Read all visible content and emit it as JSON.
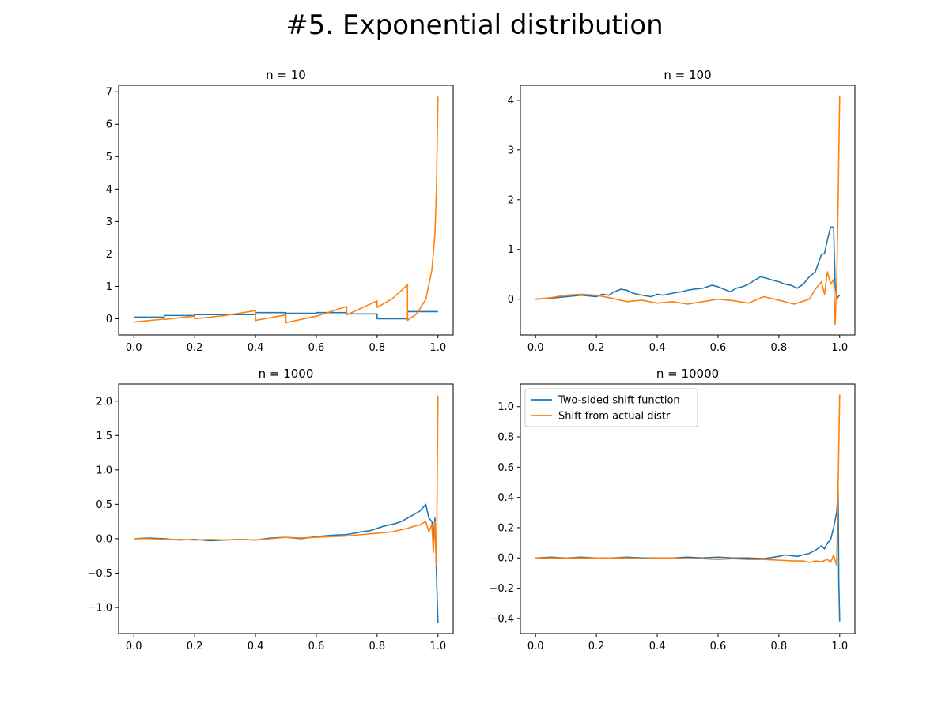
{
  "figure": {
    "title": "#5. Exponential distribution"
  },
  "colors": {
    "two_sided": "#1f77b4",
    "actual": "#ff7f0e"
  },
  "legend": {
    "items": [
      "Two-sided shift function",
      "Shift from actual distr"
    ]
  },
  "chart_data": [
    {
      "type": "line",
      "title": "n = 10",
      "xlim": [
        -0.05,
        1.05
      ],
      "ylim": [
        -0.5,
        7.2
      ],
      "xticks": [
        0.0,
        0.2,
        0.4,
        0.6,
        0.8,
        1.0
      ],
      "xtick_labels": [
        "0.0",
        "0.2",
        "0.4",
        "0.6",
        "0.8",
        "1.0"
      ],
      "yticks": [
        0,
        1,
        2,
        3,
        4,
        5,
        6,
        7
      ],
      "ytick_labels": [
        "0",
        "1",
        "2",
        "3",
        "4",
        "5",
        "6",
        "7"
      ],
      "series": [
        {
          "color": "#1f77b4",
          "points": [
            [
              0.0,
              0.05
            ],
            [
              0.1,
              0.05
            ],
            [
              0.1,
              0.1
            ],
            [
              0.2,
              0.1
            ],
            [
              0.2,
              0.13
            ],
            [
              0.4,
              0.13
            ],
            [
              0.4,
              0.19
            ],
            [
              0.5,
              0.19
            ],
            [
              0.5,
              0.17
            ],
            [
              0.6,
              0.17
            ],
            [
              0.6,
              0.19
            ],
            [
              0.7,
              0.19
            ],
            [
              0.7,
              0.15
            ],
            [
              0.8,
              0.15
            ],
            [
              0.8,
              0.0
            ],
            [
              0.9,
              0.0
            ],
            [
              0.9,
              0.22
            ],
            [
              1.0,
              0.22
            ]
          ]
        },
        {
          "color": "#ff7f0e",
          "points": [
            [
              0.0,
              -0.1
            ],
            [
              0.1,
              -0.01
            ],
            [
              0.1,
              -0.02
            ],
            [
              0.2,
              0.08
            ],
            [
              0.2,
              0.0
            ],
            [
              0.3,
              0.1
            ],
            [
              0.4,
              0.25
            ],
            [
              0.4,
              -0.05
            ],
            [
              0.5,
              0.12
            ],
            [
              0.5,
              -0.12
            ],
            [
              0.6,
              0.08
            ],
            [
              0.7,
              0.38
            ],
            [
              0.7,
              0.12
            ],
            [
              0.8,
              0.55
            ],
            [
              0.8,
              0.35
            ],
            [
              0.85,
              0.62
            ],
            [
              0.9,
              1.05
            ],
            [
              0.9,
              -0.05
            ],
            [
              0.93,
              0.15
            ],
            [
              0.96,
              0.6
            ],
            [
              0.98,
              1.5
            ],
            [
              0.99,
              2.6
            ],
            [
              0.995,
              4.0
            ],
            [
              1.0,
              6.85
            ]
          ]
        }
      ]
    },
    {
      "type": "line",
      "title": "n = 100",
      "xlim": [
        -0.05,
        1.05
      ],
      "ylim": [
        -0.72,
        4.3
      ],
      "xticks": [
        0.0,
        0.2,
        0.4,
        0.6,
        0.8,
        1.0
      ],
      "xtick_labels": [
        "0.0",
        "0.2",
        "0.4",
        "0.6",
        "0.8",
        "1.0"
      ],
      "yticks": [
        0,
        1,
        2,
        3,
        4
      ],
      "ytick_labels": [
        "0",
        "1",
        "2",
        "3",
        "4"
      ],
      "series": [
        {
          "color": "#1f77b4",
          "points": [
            [
              0.0,
              0.0
            ],
            [
              0.05,
              0.02
            ],
            [
              0.1,
              0.05
            ],
            [
              0.15,
              0.08
            ],
            [
              0.2,
              0.05
            ],
            [
              0.22,
              0.1
            ],
            [
              0.24,
              0.08
            ],
            [
              0.26,
              0.15
            ],
            [
              0.28,
              0.2
            ],
            [
              0.3,
              0.18
            ],
            [
              0.32,
              0.12
            ],
            [
              0.35,
              0.08
            ],
            [
              0.38,
              0.05
            ],
            [
              0.4,
              0.1
            ],
            [
              0.42,
              0.08
            ],
            [
              0.45,
              0.12
            ],
            [
              0.48,
              0.15
            ],
            [
              0.5,
              0.18
            ],
            [
              0.52,
              0.2
            ],
            [
              0.55,
              0.22
            ],
            [
              0.58,
              0.28
            ],
            [
              0.6,
              0.25
            ],
            [
              0.62,
              0.2
            ],
            [
              0.64,
              0.15
            ],
            [
              0.66,
              0.22
            ],
            [
              0.68,
              0.25
            ],
            [
              0.7,
              0.3
            ],
            [
              0.72,
              0.38
            ],
            [
              0.74,
              0.45
            ],
            [
              0.76,
              0.42
            ],
            [
              0.78,
              0.38
            ],
            [
              0.8,
              0.35
            ],
            [
              0.82,
              0.3
            ],
            [
              0.84,
              0.28
            ],
            [
              0.86,
              0.22
            ],
            [
              0.88,
              0.3
            ],
            [
              0.9,
              0.45
            ],
            [
              0.92,
              0.55
            ],
            [
              0.94,
              0.9
            ],
            [
              0.95,
              0.92
            ],
            [
              0.96,
              1.2
            ],
            [
              0.97,
              1.45
            ],
            [
              0.98,
              1.45
            ],
            [
              0.985,
              0.3
            ],
            [
              0.99,
              0.0
            ],
            [
              0.995,
              0.05
            ],
            [
              1.0,
              0.08
            ]
          ]
        },
        {
          "color": "#ff7f0e",
          "points": [
            [
              0.0,
              0.0
            ],
            [
              0.05,
              0.03
            ],
            [
              0.1,
              0.08
            ],
            [
              0.15,
              0.1
            ],
            [
              0.2,
              0.08
            ],
            [
              0.25,
              0.02
            ],
            [
              0.3,
              -0.05
            ],
            [
              0.35,
              -0.02
            ],
            [
              0.4,
              -0.08
            ],
            [
              0.45,
              -0.05
            ],
            [
              0.5,
              -0.1
            ],
            [
              0.55,
              -0.05
            ],
            [
              0.6,
              0.0
            ],
            [
              0.65,
              -0.03
            ],
            [
              0.7,
              -0.08
            ],
            [
              0.75,
              0.05
            ],
            [
              0.8,
              -0.02
            ],
            [
              0.85,
              -0.1
            ],
            [
              0.9,
              0.0
            ],
            [
              0.92,
              0.2
            ],
            [
              0.94,
              0.35
            ],
            [
              0.95,
              0.1
            ],
            [
              0.96,
              0.55
            ],
            [
              0.97,
              0.3
            ],
            [
              0.98,
              0.4
            ],
            [
              0.985,
              -0.5
            ],
            [
              0.99,
              0.3
            ],
            [
              0.995,
              2.0
            ],
            [
              1.0,
              4.1
            ]
          ]
        }
      ]
    },
    {
      "type": "line",
      "title": "n = 1000",
      "xlim": [
        -0.05,
        1.05
      ],
      "ylim": [
        -1.38,
        2.25
      ],
      "xticks": [
        0.0,
        0.2,
        0.4,
        0.6,
        0.8,
        1.0
      ],
      "xtick_labels": [
        "0.0",
        "0.2",
        "0.4",
        "0.6",
        "0.8",
        "1.0"
      ],
      "yticks": [
        -1.0,
        -0.5,
        0.0,
        0.5,
        1.0,
        1.5,
        2.0
      ],
      "ytick_labels": [
        "−1.0",
        "−0.5",
        "0.0",
        "0.5",
        "1.0",
        "1.5",
        "2.0"
      ],
      "series": [
        {
          "color": "#1f77b4",
          "points": [
            [
              0.0,
              0.0
            ],
            [
              0.05,
              0.01
            ],
            [
              0.1,
              0.0
            ],
            [
              0.15,
              -0.02
            ],
            [
              0.2,
              -0.01
            ],
            [
              0.25,
              -0.03
            ],
            [
              0.3,
              -0.02
            ],
            [
              0.35,
              -0.01
            ],
            [
              0.4,
              -0.02
            ],
            [
              0.45,
              0.01
            ],
            [
              0.5,
              0.02
            ],
            [
              0.55,
              0.0
            ],
            [
              0.6,
              0.03
            ],
            [
              0.65,
              0.05
            ],
            [
              0.7,
              0.06
            ],
            [
              0.75,
              0.1
            ],
            [
              0.78,
              0.12
            ],
            [
              0.8,
              0.15
            ],
            [
              0.82,
              0.18
            ],
            [
              0.84,
              0.2
            ],
            [
              0.86,
              0.22
            ],
            [
              0.88,
              0.25
            ],
            [
              0.9,
              0.3
            ],
            [
              0.92,
              0.35
            ],
            [
              0.94,
              0.4
            ],
            [
              0.95,
              0.45
            ],
            [
              0.96,
              0.5
            ],
            [
              0.97,
              0.3
            ],
            [
              0.98,
              0.25
            ],
            [
              0.985,
              0.0
            ],
            [
              0.99,
              0.3
            ],
            [
              0.995,
              -0.5
            ],
            [
              1.0,
              -1.22
            ]
          ]
        },
        {
          "color": "#ff7f0e",
          "points": [
            [
              0.0,
              0.0
            ],
            [
              0.05,
              0.0
            ],
            [
              0.1,
              -0.01
            ],
            [
              0.15,
              -0.01
            ],
            [
              0.2,
              -0.02
            ],
            [
              0.25,
              -0.01
            ],
            [
              0.3,
              -0.02
            ],
            [
              0.35,
              -0.01
            ],
            [
              0.4,
              -0.02
            ],
            [
              0.45,
              0.0
            ],
            [
              0.5,
              0.02
            ],
            [
              0.55,
              0.01
            ],
            [
              0.6,
              0.02
            ],
            [
              0.65,
              0.03
            ],
            [
              0.7,
              0.04
            ],
            [
              0.75,
              0.06
            ],
            [
              0.8,
              0.08
            ],
            [
              0.85,
              0.1
            ],
            [
              0.9,
              0.15
            ],
            [
              0.92,
              0.18
            ],
            [
              0.94,
              0.2
            ],
            [
              0.96,
              0.25
            ],
            [
              0.97,
              0.1
            ],
            [
              0.98,
              0.2
            ],
            [
              0.985,
              -0.2
            ],
            [
              0.99,
              0.25
            ],
            [
              0.995,
              -0.4
            ],
            [
              1.0,
              2.08
            ]
          ]
        }
      ]
    },
    {
      "type": "line",
      "title": "n = 10000",
      "xlim": [
        -0.05,
        1.05
      ],
      "ylim": [
        -0.5,
        1.15
      ],
      "xticks": [
        0.0,
        0.2,
        0.4,
        0.6,
        0.8,
        1.0
      ],
      "xtick_labels": [
        "0.0",
        "0.2",
        "0.4",
        "0.6",
        "0.8",
        "1.0"
      ],
      "yticks": [
        -0.4,
        -0.2,
        0.0,
        0.2,
        0.4,
        0.6,
        0.8,
        1.0
      ],
      "ytick_labels": [
        "−0.4",
        "−0.2",
        "0.0",
        "0.2",
        "0.4",
        "0.6",
        "0.8",
        "1.0"
      ],
      "legend_position": "upper-left",
      "series": [
        {
          "name": "Two-sided shift function",
          "color": "#1f77b4",
          "points": [
            [
              0.0,
              0.0
            ],
            [
              0.05,
              0.005
            ],
            [
              0.1,
              0.0
            ],
            [
              0.15,
              0.005
            ],
            [
              0.2,
              0.0
            ],
            [
              0.25,
              0.0
            ],
            [
              0.3,
              0.005
            ],
            [
              0.35,
              0.0
            ],
            [
              0.4,
              0.0
            ],
            [
              0.45,
              0.0
            ],
            [
              0.5,
              0.005
            ],
            [
              0.55,
              0.0
            ],
            [
              0.6,
              0.005
            ],
            [
              0.65,
              0.0
            ],
            [
              0.7,
              0.0
            ],
            [
              0.75,
              -0.005
            ],
            [
              0.8,
              0.01
            ],
            [
              0.82,
              0.02
            ],
            [
              0.84,
              0.015
            ],
            [
              0.86,
              0.01
            ],
            [
              0.88,
              0.02
            ],
            [
              0.9,
              0.03
            ],
            [
              0.92,
              0.05
            ],
            [
              0.94,
              0.08
            ],
            [
              0.95,
              0.06
            ],
            [
              0.96,
              0.1
            ],
            [
              0.97,
              0.12
            ],
            [
              0.98,
              0.2
            ],
            [
              0.99,
              0.3
            ],
            [
              0.995,
              0.45
            ],
            [
              0.997,
              -0.15
            ],
            [
              1.0,
              -0.42
            ]
          ]
        },
        {
          "name": "Shift from actual distr",
          "color": "#ff7f0e",
          "points": [
            [
              0.0,
              0.0
            ],
            [
              0.05,
              0.0
            ],
            [
              0.1,
              0.0
            ],
            [
              0.15,
              0.0
            ],
            [
              0.2,
              0.0
            ],
            [
              0.25,
              0.0
            ],
            [
              0.3,
              0.0
            ],
            [
              0.35,
              -0.005
            ],
            [
              0.4,
              0.0
            ],
            [
              0.45,
              0.0
            ],
            [
              0.5,
              -0.005
            ],
            [
              0.55,
              -0.005
            ],
            [
              0.6,
              -0.01
            ],
            [
              0.65,
              -0.005
            ],
            [
              0.7,
              -0.01
            ],
            [
              0.75,
              -0.01
            ],
            [
              0.8,
              -0.015
            ],
            [
              0.85,
              -0.02
            ],
            [
              0.88,
              -0.02
            ],
            [
              0.9,
              -0.03
            ],
            [
              0.92,
              -0.02
            ],
            [
              0.94,
              -0.025
            ],
            [
              0.96,
              -0.01
            ],
            [
              0.97,
              -0.03
            ],
            [
              0.98,
              0.02
            ],
            [
              0.99,
              -0.05
            ],
            [
              0.995,
              0.48
            ],
            [
              1.0,
              1.08
            ]
          ]
        }
      ]
    }
  ]
}
